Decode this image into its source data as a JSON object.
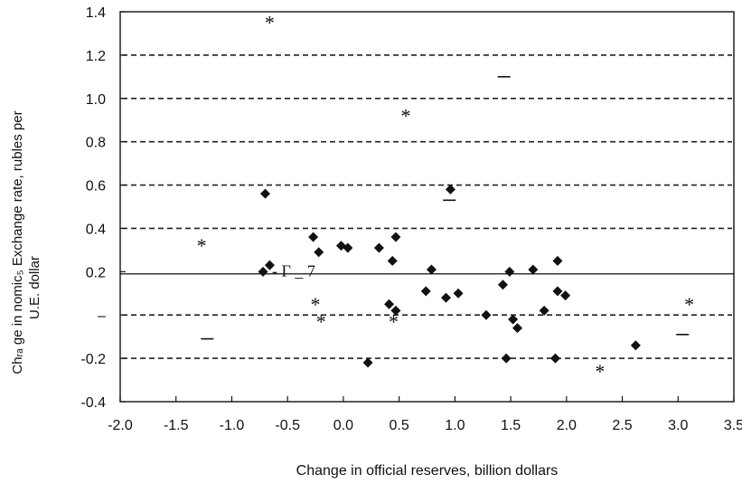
{
  "chart_data": {
    "type": "scatter",
    "title": "",
    "xlabel": "Change in official reserves, billion dollars",
    "ylabel_lines": [
      "Chᵣₐ ge in nomic₅ Exchange rate, rubles per",
      "U.E. dollar"
    ],
    "xlim": [
      -2.0,
      3.5
    ],
    "ylim": [
      -0.4,
      1.4
    ],
    "x_ticks": [
      {
        "value": -2.0,
        "label": "-2.0"
      },
      {
        "value": -1.5,
        "label": "-1.5"
      },
      {
        "value": -1.0,
        "label": "-1.0"
      },
      {
        "value": -0.5,
        "label": "-0.5"
      },
      {
        "value": 0.0,
        "label": "0.0"
      },
      {
        "value": 0.5,
        "label": "0.5"
      },
      {
        "value": 1.0,
        "label": "1.0"
      },
      {
        "value": 1.5,
        "label": "1.5"
      },
      {
        "value": 2.0,
        "label": "2.0"
      },
      {
        "value": 2.5,
        "label": "2.5"
      },
      {
        "value": 3.0,
        "label": "3.0"
      },
      {
        "value": 3.5,
        "label": "3.5"
      }
    ],
    "y_ticks": [
      {
        "value": 1.4,
        "label": "1.4"
      },
      {
        "value": 1.2,
        "label": "1.2"
      },
      {
        "value": 1.0,
        "label": "1.0"
      },
      {
        "value": 0.8,
        "label": "0.8"
      },
      {
        "value": 0.6,
        "label": "0.6"
      },
      {
        "value": 0.4,
        "label": "0.4"
      },
      {
        "value": 0.2,
        "label": "0.2"
      },
      {
        "value": 0.0,
        "label": "–"
      },
      {
        "value": -0.2,
        "label": "-0.2"
      },
      {
        "value": -0.4,
        "label": "-0.4"
      }
    ],
    "dashed_grid_y": [
      1.2,
      1.0,
      0.8,
      0.6,
      0.4,
      0.0,
      -0.2
    ],
    "reference_line_y": 0.19,
    "series": [
      {
        "marker": "diamond",
        "points": [
          {
            "x": -0.7,
            "y": 0.56
          },
          {
            "x": -0.72,
            "y": 0.2
          },
          {
            "x": -0.66,
            "y": 0.23
          },
          {
            "x": -0.27,
            "y": 0.36
          },
          {
            "x": -0.22,
            "y": 0.29
          },
          {
            "x": -0.02,
            "y": 0.32
          },
          {
            "x": 0.04,
            "y": 0.31
          },
          {
            "x": 0.22,
            "y": -0.22
          },
          {
            "x": 0.32,
            "y": 0.31
          },
          {
            "x": 0.41,
            "y": 0.05
          },
          {
            "x": 0.44,
            "y": 0.25
          },
          {
            "x": 0.47,
            "y": 0.02
          },
          {
            "x": 0.47,
            "y": 0.36
          },
          {
            "x": 0.74,
            "y": 0.11
          },
          {
            "x": 0.79,
            "y": 0.21
          },
          {
            "x": 0.92,
            "y": 0.08
          },
          {
            "x": 0.96,
            "y": 0.58
          },
          {
            "x": 1.03,
            "y": 0.1
          },
          {
            "x": 1.28,
            "y": 0.0
          },
          {
            "x": 1.43,
            "y": 0.14
          },
          {
            "x": 1.46,
            "y": -0.2
          },
          {
            "x": 1.49,
            "y": 0.2
          },
          {
            "x": 1.52,
            "y": -0.02
          },
          {
            "x": 1.56,
            "y": -0.06
          },
          {
            "x": 1.7,
            "y": 0.21
          },
          {
            "x": 1.8,
            "y": 0.02
          },
          {
            "x": 1.9,
            "y": -0.2
          },
          {
            "x": 1.92,
            "y": 0.11
          },
          {
            "x": 1.92,
            "y": 0.25
          },
          {
            "x": 1.99,
            "y": 0.09
          },
          {
            "x": 2.62,
            "y": -0.14
          }
        ]
      },
      {
        "marker": "asterisk",
        "points": [
          {
            "x": -1.27,
            "y": 0.33
          },
          {
            "x": -0.66,
            "y": 1.36
          },
          {
            "x": -0.25,
            "y": 0.06
          },
          {
            "x": -0.2,
            "y": -0.02
          },
          {
            "x": 0.45,
            "y": -0.02
          },
          {
            "x": 0.56,
            "y": 0.93
          },
          {
            "x": 2.3,
            "y": -0.25
          },
          {
            "x": 3.1,
            "y": 0.06
          }
        ]
      },
      {
        "marker": "dash",
        "points": [
          {
            "x": -1.22,
            "y": -0.11
          },
          {
            "x": 0.95,
            "y": 0.53
          },
          {
            "x": 1.44,
            "y": 1.1
          },
          {
            "x": 3.04,
            "y": -0.09
          }
        ]
      }
    ],
    "annotations": [
      {
        "text": "- Γ _ 7",
        "x": -0.72,
        "y": 0.2
      }
    ]
  }
}
